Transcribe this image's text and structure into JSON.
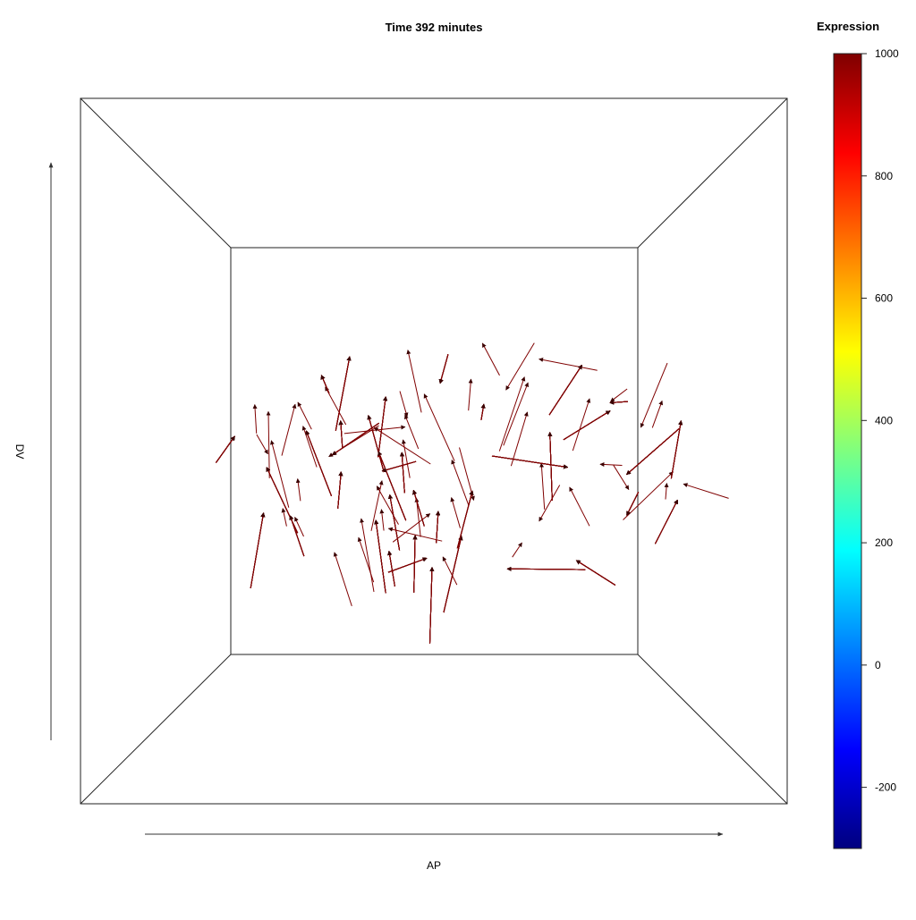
{
  "chart_data": {
    "type": "3d-vector-field",
    "title": "Time 392 minutes",
    "xlabel": "AP",
    "ylabel": "DV",
    "colorbar": {
      "title": "Expression",
      "range": [
        -300,
        1000
      ],
      "ticks": [
        -200,
        0,
        200,
        400,
        600,
        800,
        1000
      ],
      "tick_labels": [
        "-200",
        "0",
        "200",
        "400",
        "600",
        "800",
        "1000"
      ],
      "colormap": "jet",
      "colors": [
        "#00007f",
        "#0000ff",
        "#007fff",
        "#00ffff",
        "#7fff7f",
        "#ffff00",
        "#ff7f00",
        "#ff0000",
        "#7f0000"
      ]
    },
    "vector_color": "#7f0000",
    "vector_expression": 1000,
    "vector_count": 480,
    "grid": false,
    "legend": "right"
  }
}
